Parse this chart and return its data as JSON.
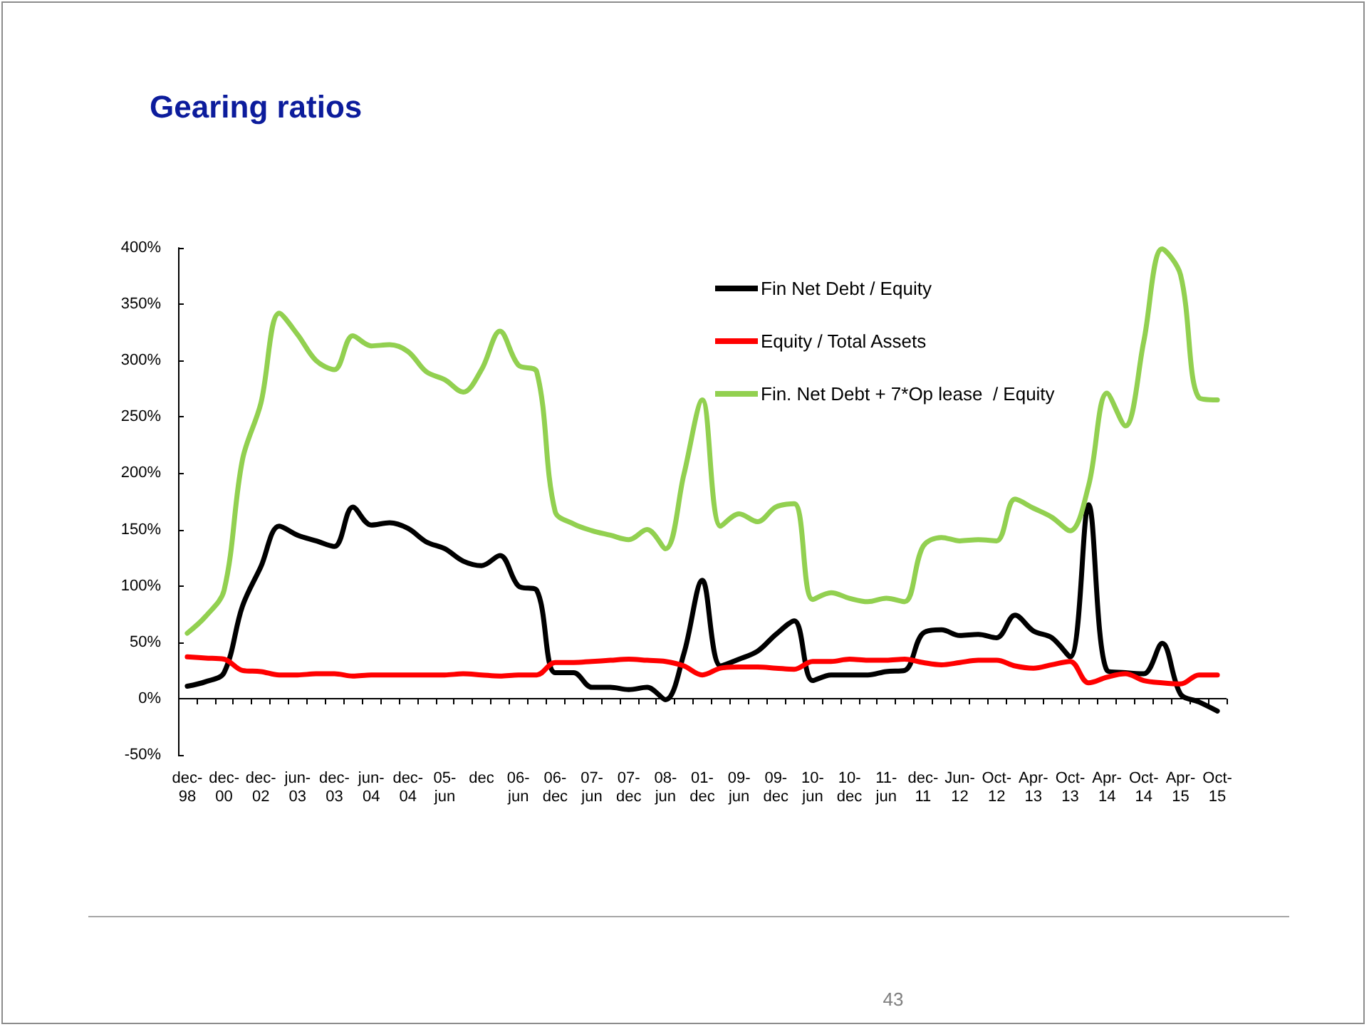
{
  "chart_data": {
    "type": "line",
    "title": "Gearing ratios",
    "categories": [
      "dec-98",
      null,
      "dec-00",
      null,
      "dec-02",
      null,
      "jun-03",
      null,
      "dec-03",
      null,
      "jun-04",
      null,
      "dec-04",
      null,
      "05-jun",
      null,
      "dec",
      null,
      "06-jun",
      null,
      "06-dec",
      null,
      "07-jun",
      null,
      "07-dec",
      null,
      "08-jun",
      null,
      "01-dec",
      null,
      "09-jun",
      null,
      "09-dec",
      null,
      "10-jun",
      null,
      "10-dec",
      null,
      "11-jun",
      null,
      "dec-11",
      null,
      "Jun-12",
      null,
      "Oct-12",
      null,
      "Apr-13",
      null,
      "Oct-13",
      null,
      "Apr-14",
      null,
      "Oct-14",
      null,
      "Apr-15",
      null,
      "Oct-15"
    ],
    "series": [
      {
        "name": "Fin Net Debt / Equity",
        "color": "#000000",
        "values": [
          11,
          15,
          23,
          82,
          117,
          153,
          145,
          140,
          135,
          170,
          154,
          156,
          151,
          139,
          133,
          122,
          118,
          127,
          100,
          96,
          23,
          23,
          10,
          10,
          8,
          10,
          -1,
          40,
          105,
          29,
          35,
          42,
          57,
          69,
          16,
          21,
          21,
          21,
          24,
          25,
          58,
          61,
          56,
          57,
          54,
          74,
          60,
          54,
          37,
          172,
          25,
          23,
          22,
          49,
          4,
          -3,
          -11
        ]
      },
      {
        "name": "Equity / Total Assets",
        "color": "#ff0000",
        "values": [
          37,
          36,
          35,
          25,
          24,
          21,
          21,
          22,
          22,
          20,
          21,
          21,
          21,
          21,
          21,
          22,
          21,
          20,
          21,
          21,
          32,
          32,
          33,
          34,
          35,
          34,
          33,
          29,
          21,
          27,
          28,
          28,
          27,
          26,
          33,
          33,
          35,
          34,
          34,
          35,
          32,
          30,
          32,
          34,
          34,
          29,
          27,
          30,
          33,
          14,
          19,
          22,
          16,
          14,
          13,
          21,
          21
        ]
      },
      {
        "name": "Fin. Net Debt + 7*Op lease  / Equity",
        "color": "#92d050",
        "values": [
          58,
          73,
          96,
          212,
          262,
          342,
          323,
          300,
          292,
          322,
          313,
          314,
          308,
          290,
          283,
          272,
          292,
          326,
          296,
          290,
          166,
          155,
          149,
          145,
          141,
          150,
          133,
          199,
          265,
          153,
          164,
          157,
          170,
          173,
          88,
          94,
          89,
          86,
          89,
          86,
          135,
          143,
          140,
          141,
          140,
          177,
          169,
          161,
          149,
          189,
          271,
          242,
          317,
          399,
          376,
          267,
          265
        ]
      }
    ],
    "ylim": [
      -50,
      400
    ],
    "yticks": [
      {
        "value": -50,
        "label": "-50%"
      },
      {
        "value": 0,
        "label": "0%"
      },
      {
        "value": 50,
        "label": "50%"
      },
      {
        "value": 100,
        "label": "100%"
      },
      {
        "value": 150,
        "label": "150%"
      },
      {
        "value": 200,
        "label": "200%"
      },
      {
        "value": 250,
        "label": "250%"
      },
      {
        "value": 300,
        "label": "300%"
      },
      {
        "value": 350,
        "label": "350%"
      },
      {
        "value": 400,
        "label": "400%"
      }
    ],
    "ref_lines": [
      {
        "axis": "y",
        "value": 0,
        "color": "#000000",
        "line_style": "solid"
      }
    ],
    "grid": false,
    "legend": "top right",
    "annotations": [
      "43"
    ]
  }
}
